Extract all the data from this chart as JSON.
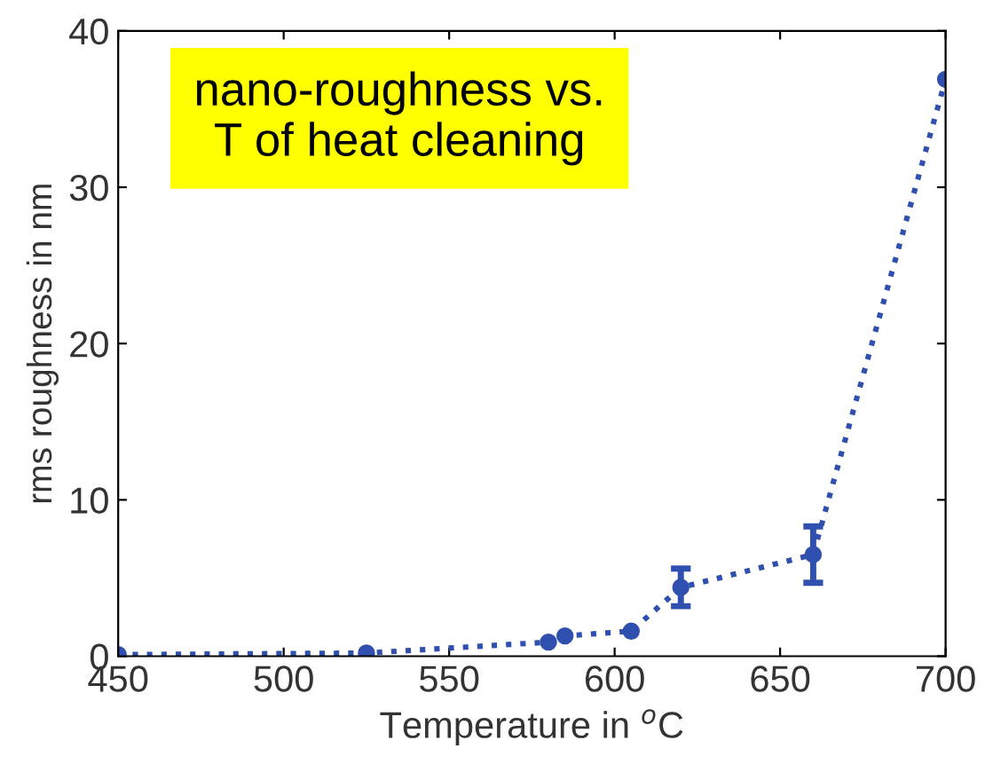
{
  "chart_data": {
    "type": "line",
    "xlabel": "Temperature in $^{o}$C",
    "ylabel": "rms roughness in nm",
    "annotations": [
      "nano-roughness vs.\nT of heat cleaning"
    ],
    "x": [
      450,
      525,
      580,
      585,
      605,
      620,
      660,
      700
    ],
    "series": [
      {
        "color": "#3050b0",
        "values": [
          0.1,
          0.2,
          0.9,
          1.3,
          1.6,
          4.4,
          6.5,
          36.9
        ],
        "errors": [
          null,
          null,
          null,
          null,
          null,
          1.2,
          1.8,
          null
        ]
      }
    ],
    "xlim": [
      450,
      700
    ],
    "xticks": [
      450,
      500,
      550,
      600,
      650,
      700
    ],
    "ylim": [
      0,
      40
    ],
    "yticks": [
      0,
      10,
      20,
      30,
      40
    ],
    "grid": false,
    "legend": false,
    "marker": "circle",
    "line_style": "dotted"
  }
}
